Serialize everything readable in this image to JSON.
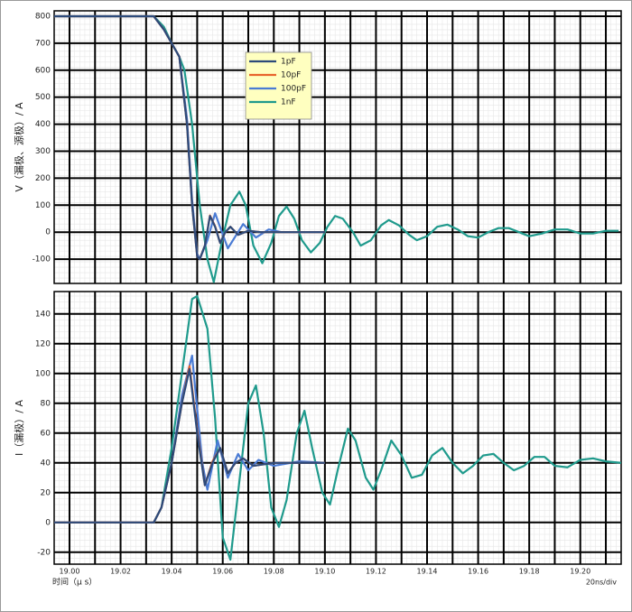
{
  "chart_data": [
    {
      "type": "line",
      "ylabel": "V（漏极、源极）/ A",
      "xlim": [
        18.994,
        19.216
      ],
      "ylim": [
        -190,
        820
      ],
      "xticks": [
        19,
        19.01,
        19.02,
        19.03,
        19.04,
        19.05,
        19.06,
        19.07,
        19.08,
        19.09,
        19.1,
        19.11,
        19.12,
        19.13,
        19.14,
        19.15,
        19.16,
        19.17,
        19.18,
        19.19,
        19.2,
        19.21
      ],
      "yticks": [
        -100,
        0,
        100,
        200,
        300,
        400,
        500,
        600,
        700,
        800
      ],
      "grid": true,
      "legend": "upper center",
      "series": [
        {
          "name": "1pF",
          "color": "#2c4a7a",
          "x": [
            18.994,
            19.033,
            19.037,
            19.04,
            19.043,
            19.046,
            19.048,
            19.05,
            19.051,
            19.053,
            19.055,
            19.057,
            19.059,
            19.061,
            19.063,
            19.066,
            19.07,
            19.075,
            19.08,
            19.1
          ],
          "values": [
            800,
            800,
            750,
            700,
            650,
            400,
            100,
            -90,
            -100,
            -50,
            60,
            20,
            -40,
            0,
            20,
            -10,
            5,
            0,
            0,
            0
          ]
        },
        {
          "name": "10pF",
          "color": "#e8642c",
          "x": [
            18.994,
            19.033,
            19.037,
            19.04,
            19.043,
            19.046,
            19.048,
            19.05,
            19.051,
            19.053,
            19.055,
            19.057,
            19.059,
            19.061,
            19.063,
            19.066,
            19.07,
            19.075,
            19.08,
            19.1
          ],
          "values": [
            800,
            800,
            750,
            700,
            650,
            400,
            100,
            -90,
            -100,
            -50,
            62,
            22,
            -40,
            0,
            20,
            -10,
            5,
            0,
            0,
            0
          ]
        },
        {
          "name": "100pF",
          "color": "#4a7bd4",
          "x": [
            18.994,
            19.033,
            19.037,
            19.04,
            19.043,
            19.046,
            19.048,
            19.05,
            19.051,
            19.054,
            19.057,
            19.062,
            19.068,
            19.073,
            19.078,
            19.083,
            19.1
          ],
          "values": [
            800,
            800,
            750,
            700,
            650,
            420,
            120,
            -80,
            -100,
            -30,
            70,
            -60,
            30,
            -20,
            10,
            0,
            0
          ]
        },
        {
          "name": "1nF",
          "color": "#1f9a8c",
          "x": [
            18.994,
            19.033,
            19.037,
            19.04,
            19.043,
            19.045,
            19.048,
            19.051,
            19.054,
            19.0565,
            19.06,
            19.063,
            19.0665,
            19.069,
            19.072,
            19.0755,
            19.079,
            19.082,
            19.085,
            19.088,
            19.091,
            19.0945,
            19.098,
            19.101,
            19.104,
            19.107,
            19.111,
            19.114,
            19.118,
            19.122,
            19.125,
            19.129,
            19.133,
            19.136,
            19.14,
            19.144,
            19.148,
            19.152,
            19.156,
            19.16,
            19.164,
            19.168,
            19.172,
            19.176,
            19.18,
            19.185,
            19.19,
            19.195,
            19.2,
            19.205,
            19.21,
            19.215
          ],
          "values": [
            800,
            800,
            760,
            700,
            650,
            600,
            400,
            100,
            -100,
            -185,
            -20,
            100,
            150,
            100,
            -50,
            -115,
            -40,
            60,
            95,
            50,
            -30,
            -75,
            -40,
            20,
            60,
            50,
            0,
            -50,
            -30,
            25,
            45,
            25,
            -10,
            -30,
            -15,
            20,
            28,
            10,
            -15,
            -20,
            0,
            15,
            15,
            0,
            -15,
            -5,
            10,
            10,
            -5,
            -5,
            5,
            5
          ]
        }
      ]
    },
    {
      "type": "line",
      "ylabel": "I（漏极）/ A",
      "xlabel": "时间（μ s）",
      "annotation": "20ns/div",
      "xlim": [
        18.994,
        19.216
      ],
      "ylim": [
        -28,
        155
      ],
      "xticks": [
        {
          "value": 19,
          "label": "19.00"
        },
        {
          "value": 19.01,
          "label": null
        },
        {
          "value": 19.02,
          "label": "19.02"
        },
        {
          "value": 19.03,
          "label": null
        },
        {
          "value": 19.04,
          "label": "19.04"
        },
        {
          "value": 19.05,
          "label": null
        },
        {
          "value": 19.06,
          "label": "19.06"
        },
        {
          "value": 19.07,
          "label": null
        },
        {
          "value": 19.08,
          "label": "19.08"
        },
        {
          "value": 19.09,
          "label": null
        },
        {
          "value": 19.1,
          "label": "19.10"
        },
        {
          "value": 19.11,
          "label": null
        },
        {
          "value": 19.12,
          "label": "19.12"
        },
        {
          "value": 19.13,
          "label": null
        },
        {
          "value": 19.14,
          "label": "19.14"
        },
        {
          "value": 19.15,
          "label": null
        },
        {
          "value": 19.16,
          "label": "19.16"
        },
        {
          "value": 19.17,
          "label": null
        },
        {
          "value": 19.18,
          "label": "19.18"
        },
        {
          "value": 19.19,
          "label": null
        },
        {
          "value": 19.2,
          "label": "19.20"
        },
        {
          "value": 19.21,
          "label": null
        }
      ],
      "yticks": [
        -20,
        0,
        20,
        40,
        60,
        80,
        100,
        120,
        140
      ],
      "grid": true,
      "series": [
        {
          "color": "#2c4a7a",
          "x": [
            18.994,
            19.033,
            19.036,
            19.04,
            19.044,
            19.047,
            19.05,
            19.053,
            19.056,
            19.059,
            19.062,
            19.065,
            19.068,
            19.072,
            19.08,
            19.1
          ],
          "values": [
            0,
            0,
            10,
            40,
            80,
            103,
            60,
            25,
            40,
            50,
            33,
            40,
            43,
            38,
            40,
            40
          ]
        },
        {
          "color": "#e8642c",
          "x": [
            18.994,
            19.033,
            19.036,
            19.04,
            19.044,
            19.047,
            19.05,
            19.053,
            19.056,
            19.059,
            19.062,
            19.065,
            19.068,
            19.072,
            19.08,
            19.1
          ],
          "values": [
            0,
            0,
            10,
            40,
            80,
            105,
            62,
            25,
            41,
            50,
            33,
            40,
            43,
            38,
            40,
            40
          ]
        },
        {
          "color": "#4a7bd4",
          "x": [
            18.994,
            19.033,
            19.036,
            19.04,
            19.044,
            19.048,
            19.052,
            19.054,
            19.058,
            19.062,
            19.066,
            19.07,
            19.074,
            19.08,
            19.09,
            19.1
          ],
          "values": [
            0,
            0,
            10,
            40,
            85,
            112,
            40,
            22,
            55,
            30,
            46,
            35,
            42,
            38,
            41,
            40
          ]
        },
        {
          "color": "#1f9a8c",
          "x": [
            18.994,
            19.033,
            19.036,
            19.04,
            19.044,
            19.048,
            19.05,
            19.054,
            19.057,
            19.06,
            19.063,
            19.066,
            19.07,
            19.073,
            19.076,
            19.079,
            19.082,
            19.085,
            19.089,
            19.092,
            19.095,
            19.099,
            19.102,
            19.105,
            19.109,
            19.112,
            19.116,
            19.119,
            19.122,
            19.126,
            19.13,
            19.134,
            19.138,
            19.142,
            19.146,
            19.15,
            19.154,
            19.158,
            19.162,
            19.166,
            19.17,
            19.174,
            19.178,
            19.182,
            19.186,
            19.19,
            19.195,
            19.2,
            19.205,
            19.21,
            19.216
          ],
          "values": [
            0,
            0,
            10,
            50,
            100,
            150,
            152,
            130,
            70,
            -10,
            -25,
            20,
            80,
            92,
            60,
            10,
            -3,
            15,
            60,
            75,
            50,
            20,
            12,
            35,
            63,
            55,
            30,
            22,
            35,
            55,
            45,
            30,
            32,
            45,
            50,
            40,
            33,
            38,
            45,
            46,
            40,
            35,
            38,
            44,
            44,
            38,
            37,
            42,
            43,
            41,
            40
          ]
        }
      ]
    }
  ]
}
